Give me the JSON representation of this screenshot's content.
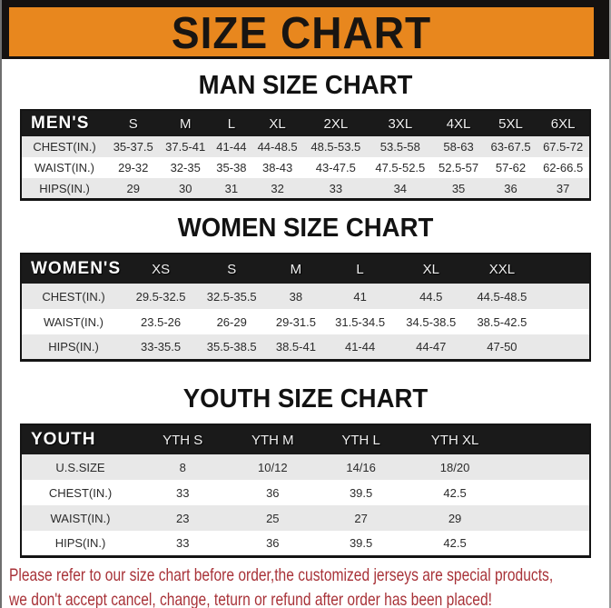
{
  "banner": {
    "title": "SIZE CHART",
    "background_color": "#E8871E",
    "frame_color": "#141110",
    "title_color": "#181512"
  },
  "sections": [
    {
      "heading": "MAN SIZE CHART",
      "header_label": "MEN'S",
      "sizes": [
        "S",
        "M",
        "L",
        "XL",
        "2XL",
        "3XL",
        "4XL",
        "5XL",
        "6XL"
      ],
      "rows": [
        {
          "label": "CHEST(IN.)",
          "values": [
            "35-37.5",
            "37.5-41",
            "41-44",
            "44-48.5",
            "48.5-53.5",
            "53.5-58",
            "58-63",
            "63-67.5",
            "67.5-72"
          ]
        },
        {
          "label": "WAIST(IN.)",
          "values": [
            "29-32",
            "32-35",
            "35-38",
            "38-43",
            "43-47.5",
            "47.5-52.5",
            "52.5-57",
            "57-62",
            "62-66.5"
          ]
        },
        {
          "label": "HIPS(IN.)",
          "values": [
            "29",
            "30",
            "31",
            "32",
            "33",
            "34",
            "35",
            "36",
            "37"
          ]
        }
      ]
    },
    {
      "heading": "WOMEN SIZE CHART",
      "header_label": "WOMEN'S",
      "sizes": [
        "XS",
        "S",
        "M",
        "L",
        "XL",
        "XXL"
      ],
      "rows": [
        {
          "label": "CHEST(IN.)",
          "values": [
            "29.5-32.5",
            "32.5-35.5",
            "38",
            "41",
            "44.5",
            "44.5-48.5"
          ]
        },
        {
          "label": "WAIST(IN.)",
          "values": [
            "23.5-26",
            "26-29",
            "29-31.5",
            "31.5-34.5",
            "34.5-38.5",
            "38.5-42.5"
          ]
        },
        {
          "label": "HIPS(IN.)",
          "values": [
            "33-35.5",
            "35.5-38.5",
            "38.5-41",
            "41-44",
            "44-47",
            "47-50"
          ]
        }
      ]
    },
    {
      "heading": "YOUTH SIZE CHART",
      "header_label": "YOUTH",
      "sizes": [
        "YTH S",
        "YTH M",
        "YTH L",
        "YTH XL"
      ],
      "rows": [
        {
          "label": "U.S.SIZE",
          "values": [
            "8",
            "10/12",
            "14/16",
            "18/20"
          ]
        },
        {
          "label": "CHEST(IN.)",
          "values": [
            "33",
            "36",
            "39.5",
            "42.5"
          ]
        },
        {
          "label": "WAIST(IN.)",
          "values": [
            "23",
            "25",
            "27",
            "29"
          ]
        },
        {
          "label": "HIPS(IN.)",
          "values": [
            "33",
            "36",
            "39.5",
            "42.5"
          ]
        }
      ]
    }
  ],
  "footer": {
    "line1": "Please refer to our size chart before order,the customized jerseys are special products,",
    "line2": "we don't accept cancel, change, teturn or refund after order has been placed!",
    "text_color": "#A83238"
  },
  "table_style": {
    "header_bg": "#1a1a1a",
    "stripe_bg": "#E8E8E8"
  }
}
